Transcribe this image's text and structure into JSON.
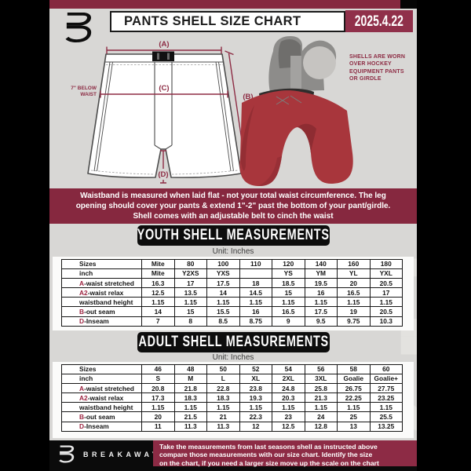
{
  "colors": {
    "maroon_banner": "#86283F",
    "maroon_date": "#90304A",
    "maroon_footer": "#8D2B45",
    "measure_line": "#8D2C44",
    "table_accent": "#9C2340",
    "page_gray": "#D8D7D5",
    "shell_red": "#A8363C",
    "black": "#0D0D0D"
  },
  "header": {
    "title": "PANTS SHELL SIZE CHART",
    "date": "2025.4.22"
  },
  "diagram": {
    "label_a": "(A)",
    "label_b": "(B)",
    "label_c": "(C)",
    "label_d": "(D)",
    "waist_note": [
      "7\" BELOW",
      "WAIST"
    ],
    "photo_caption": [
      "SHELLS ARE WORN",
      "OVER HOCKEY",
      "EQUIPMENT PANTS",
      "OR GIRDLE"
    ]
  },
  "notice": {
    "lines": [
      "Waistband is measured when laid flat - not your total waist circumference. The leg",
      "opening should cover your pants & extend 1\"-2\" past the bottom of your pant/girdle.",
      "Shell comes with an adjustable belt to cinch the waist"
    ]
  },
  "youth": {
    "banner": "YOUTH SHELL MEASUREMENTS",
    "unit": "Unit: Inches",
    "sizes_label": "Sizes",
    "inch_label": "inch",
    "sizes": [
      "Mite",
      "80",
      "100",
      "110",
      "120",
      "140",
      "160",
      "180"
    ],
    "inch": [
      "Mite",
      "Y2XS",
      "YXS",
      "",
      "YS",
      "YM",
      "YL",
      "YXL"
    ],
    "rows": [
      {
        "prefix": "A",
        "label": "-waist stretched",
        "values": [
          "16.3",
          "17",
          "17.5",
          "18",
          "18.5",
          "19.5",
          "20",
          "20.5"
        ]
      },
      {
        "prefix": "A2",
        "label": "-waist relax",
        "values": [
          "12.5",
          "13.5",
          "14",
          "14.5",
          "15",
          "16",
          "16.5",
          "17"
        ]
      },
      {
        "prefix": "",
        "label": "waistband height",
        "values": [
          "1.15",
          "1.15",
          "1.15",
          "1.15",
          "1.15",
          "1.15",
          "1.15",
          "1.15"
        ]
      },
      {
        "prefix": "B",
        "label": "-out seam",
        "values": [
          "14",
          "15",
          "15.5",
          "16",
          "16.5",
          "17.5",
          "19",
          "20.5"
        ]
      },
      {
        "prefix": "D",
        "label": "-Inseam",
        "values": [
          "7",
          "8",
          "8.5",
          "8.75",
          "9",
          "9.5",
          "9.75",
          "10.3"
        ]
      }
    ]
  },
  "adult": {
    "banner": "ADULT SHELL MEASUREMENTS",
    "unit": "Unit: Inches",
    "sizes_label": "Sizes",
    "inch_label": "inch",
    "sizes": [
      "46",
      "48",
      "50",
      "52",
      "54",
      "56",
      "58",
      "60"
    ],
    "inch": [
      "S",
      "M",
      "L",
      "XL",
      "2XL",
      "3XL",
      "Goalie",
      "Goalie+"
    ],
    "rows": [
      {
        "prefix": "A",
        "label": "-waist stretched",
        "values": [
          "20.8",
          "21.8",
          "22.8",
          "23.8",
          "24.8",
          "25.8",
          "26.75",
          "27.75"
        ]
      },
      {
        "prefix": "A2",
        "label": "-waist relax",
        "values": [
          "17.3",
          "18.3",
          "18.3",
          "19.3",
          "20.3",
          "21.3",
          "22.25",
          "23.25"
        ]
      },
      {
        "prefix": "",
        "label": "waistband height",
        "values": [
          "1.15",
          "1.15",
          "1.15",
          "1.15",
          "1.15",
          "1.15",
          "1.15",
          "1.15"
        ]
      },
      {
        "prefix": "B",
        "label": "-out seam",
        "values": [
          "20",
          "21.5",
          "21",
          "22.3",
          "23",
          "24",
          "25",
          "25.5"
        ]
      },
      {
        "prefix": "D",
        "label": "-Inseam",
        "values": [
          "11",
          "11.3",
          "11.3",
          "12",
          "12.5",
          "12.8",
          "13",
          "13.25"
        ]
      }
    ]
  },
  "footer": {
    "brand": "BREAKAWAY",
    "lines": [
      "Take the measurements from last seasons shell as instructed above",
      "compare those measurements  with our size chart. Identify the size",
      "on the chart, if you need a larger size move up the scale on the chart"
    ]
  }
}
